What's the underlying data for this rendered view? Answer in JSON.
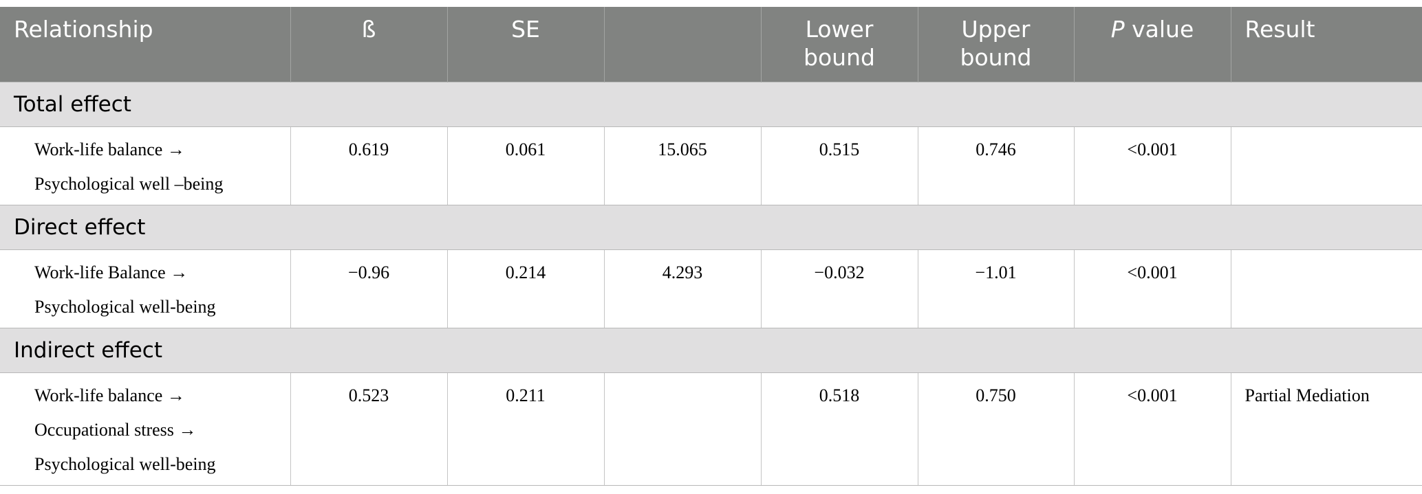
{
  "table": {
    "header": [
      "Relationship",
      "ß",
      "SE",
      null,
      "Lower bound",
      "Upper bound",
      {
        "em": "P",
        "rest": "value"
      },
      "Result"
    ],
    "sections": [
      {
        "title": "Total effect",
        "rows": [
          {
            "relationship": [
              "Work-life balance →",
              "Psychological well –being"
            ],
            "cells": [
              "0.619",
              "0.061",
              "15.065",
              "0.515",
              "0.746",
              "<0.001",
              null
            ]
          }
        ]
      },
      {
        "title": "Direct effect",
        "rows": [
          {
            "relationship": [
              "Work-life Balance →",
              "Psychological well-being"
            ],
            "cells": [
              "−0.96",
              "0.214",
              "4.293",
              "−0.032",
              "−1.01",
              "<0.001",
              null
            ]
          }
        ]
      },
      {
        "title": "Indirect effect",
        "rows": [
          {
            "relationship": [
              "Work-life balance →",
              "Occupational stress →",
              "Psychological well-being"
            ],
            "cells": [
              "0.523",
              "0.211",
              null,
              "0.518",
              "0.750",
              "<0.001",
              "Partial Mediation"
            ]
          }
        ]
      }
    ]
  }
}
